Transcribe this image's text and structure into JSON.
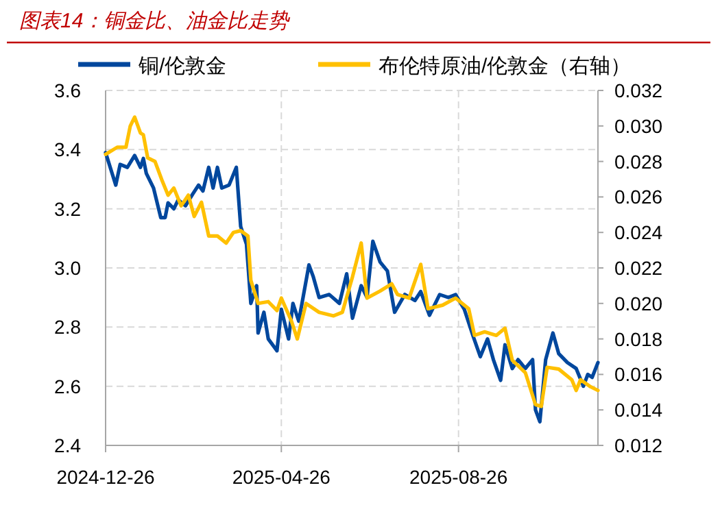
{
  "chart_data": {
    "type": "line",
    "title": "图表14：铜金比、油金比走势",
    "legend": "top",
    "grid": true,
    "line_style": "solid",
    "marker": "none",
    "xlim": [
      "2024-12-26",
      "2025-11-30"
    ],
    "xticks": [
      {
        "value": "2024-12-26",
        "label": "2024-12-26"
      },
      {
        "value": "2025-04-26",
        "label": "2025-04-26"
      },
      {
        "value": "2025-08-26",
        "label": "2025-08-26"
      }
    ],
    "ylim": [
      2.4,
      3.6
    ],
    "yticks": [
      2.4,
      2.6,
      2.8,
      {
        "value": 3,
        "label": "3.0"
      },
      3.2,
      3.4,
      3.6
    ],
    "y2lim": [
      0.012,
      0.032
    ],
    "y2ticks": [
      0.012,
      0.014,
      0.016,
      0.018,
      {
        "value": 0.02,
        "label": "0.020"
      },
      0.022,
      0.024,
      0.026,
      0.028,
      {
        "value": 0.03,
        "label": "0.030"
      },
      0.032
    ],
    "series": [
      {
        "name": "铜/伦敦金",
        "color": "#00479d",
        "x": [
          "2024-12-26",
          "2025-01-02",
          "2025-01-05",
          "2025-01-10",
          "2025-01-15",
          "2025-01-19",
          "2025-01-21",
          "2025-01-23",
          "2025-01-28",
          "2025-02-02",
          "2025-02-05",
          "2025-02-07",
          "2025-02-11",
          "2025-02-14",
          "2025-02-19",
          "2025-02-24",
          "2025-02-28",
          "2025-03-03",
          "2025-03-07",
          "2025-03-10",
          "2025-03-13",
          "2025-03-16",
          "2025-03-21",
          "2025-03-26",
          "2025-03-29",
          "2025-04-02",
          "2025-04-05",
          "2025-04-09",
          "2025-04-10",
          "2025-04-14",
          "2025-04-17",
          "2025-04-23",
          "2025-04-26",
          "2025-05-01",
          "2025-05-04",
          "2025-05-08",
          "2025-05-15",
          "2025-05-18",
          "2025-05-22",
          "2025-05-29",
          "2025-06-05",
          "2025-06-10",
          "2025-06-14",
          "2025-06-20",
          "2025-06-24",
          "2025-06-28",
          "2025-07-03",
          "2025-07-08",
          "2025-07-13",
          "2025-07-20",
          "2025-07-27",
          "2025-07-31",
          "2025-08-06",
          "2025-08-13",
          "2025-08-19",
          "2025-08-24",
          "2025-08-30",
          "2025-09-05",
          "2025-09-10",
          "2025-09-15",
          "2025-09-19",
          "2025-09-24",
          "2025-09-27",
          "2025-10-02",
          "2025-10-06",
          "2025-10-11",
          "2025-10-16",
          "2025-10-18",
          "2025-10-21",
          "2025-10-25",
          "2025-10-30",
          "2025-11-03",
          "2025-11-09",
          "2025-11-15",
          "2025-11-20",
          "2025-11-23",
          "2025-11-26",
          "2025-11-30"
        ],
        "values": [
          3.39,
          3.28,
          3.35,
          3.34,
          3.38,
          3.34,
          3.37,
          3.32,
          3.27,
          3.17,
          3.17,
          3.22,
          3.2,
          3.23,
          3.21,
          3.25,
          3.28,
          3.26,
          3.34,
          3.27,
          3.34,
          3.27,
          3.28,
          3.34,
          3.14,
          3.08,
          2.88,
          2.94,
          2.78,
          2.85,
          2.76,
          2.72,
          2.86,
          2.76,
          2.88,
          2.82,
          3.01,
          2.97,
          2.9,
          2.91,
          2.88,
          2.98,
          2.83,
          2.94,
          2.9,
          3.09,
          3.02,
          2.99,
          2.85,
          2.91,
          2.89,
          2.92,
          2.84,
          2.91,
          2.9,
          2.91,
          2.86,
          2.77,
          2.7,
          2.76,
          2.69,
          2.62,
          2.74,
          2.66,
          2.69,
          2.66,
          2.69,
          2.52,
          2.48,
          2.69,
          2.78,
          2.71,
          2.68,
          2.66,
          2.6,
          2.64,
          2.63,
          2.68
        ]
      },
      {
        "name": "布伦特原油/伦敦金（右轴）",
        "color": "#ffc000",
        "axis": "y2",
        "x": [
          "2024-12-26",
          "2025-01-03",
          "2025-01-09",
          "2025-01-12",
          "2025-01-15",
          "2025-01-19",
          "2025-01-21",
          "2025-01-24",
          "2025-01-29",
          "2025-02-03",
          "2025-02-07",
          "2025-02-11",
          "2025-02-16",
          "2025-02-21",
          "2025-02-25",
          "2025-03-02",
          "2025-03-07",
          "2025-03-13",
          "2025-03-19",
          "2025-03-24",
          "2025-03-29",
          "2025-04-03",
          "2025-04-05",
          "2025-04-10",
          "2025-04-17",
          "2025-04-23",
          "2025-04-26",
          "2025-05-03",
          "2025-05-07",
          "2025-05-13",
          "2025-05-22",
          "2025-06-01",
          "2025-06-07",
          "2025-06-14",
          "2025-06-20",
          "2025-06-24",
          "2025-07-03",
          "2025-07-11",
          "2025-07-15",
          "2025-07-23",
          "2025-07-31",
          "2025-08-05",
          "2025-08-15",
          "2025-08-24",
          "2025-09-02",
          "2025-09-06",
          "2025-09-13",
          "2025-09-21",
          "2025-09-27",
          "2025-10-02",
          "2025-10-11",
          "2025-10-18",
          "2025-10-22",
          "2025-10-26",
          "2025-11-03",
          "2025-11-12",
          "2025-11-15",
          "2025-11-18",
          "2025-11-25",
          "2025-11-30"
        ],
        "values": [
          0.0284,
          0.0288,
          0.0288,
          0.03,
          0.0305,
          0.0296,
          0.0295,
          0.0282,
          0.028,
          0.0269,
          0.0261,
          0.0265,
          0.0255,
          0.0261,
          0.0249,
          0.0257,
          0.0238,
          0.0238,
          0.0234,
          0.024,
          0.0241,
          0.0238,
          0.0213,
          0.02,
          0.0201,
          0.0196,
          0.0203,
          0.019,
          0.018,
          0.02,
          0.0195,
          0.0193,
          0.0195,
          0.0215,
          0.0234,
          0.0203,
          0.0207,
          0.0211,
          0.0205,
          0.0203,
          0.0222,
          0.0197,
          0.0199,
          0.0203,
          0.0197,
          0.0182,
          0.0184,
          0.0182,
          0.0186,
          0.0168,
          0.0161,
          0.0143,
          0.0142,
          0.0164,
          0.0163,
          0.0157,
          0.0151,
          0.0157,
          0.0153,
          0.0151
        ]
      }
    ]
  }
}
